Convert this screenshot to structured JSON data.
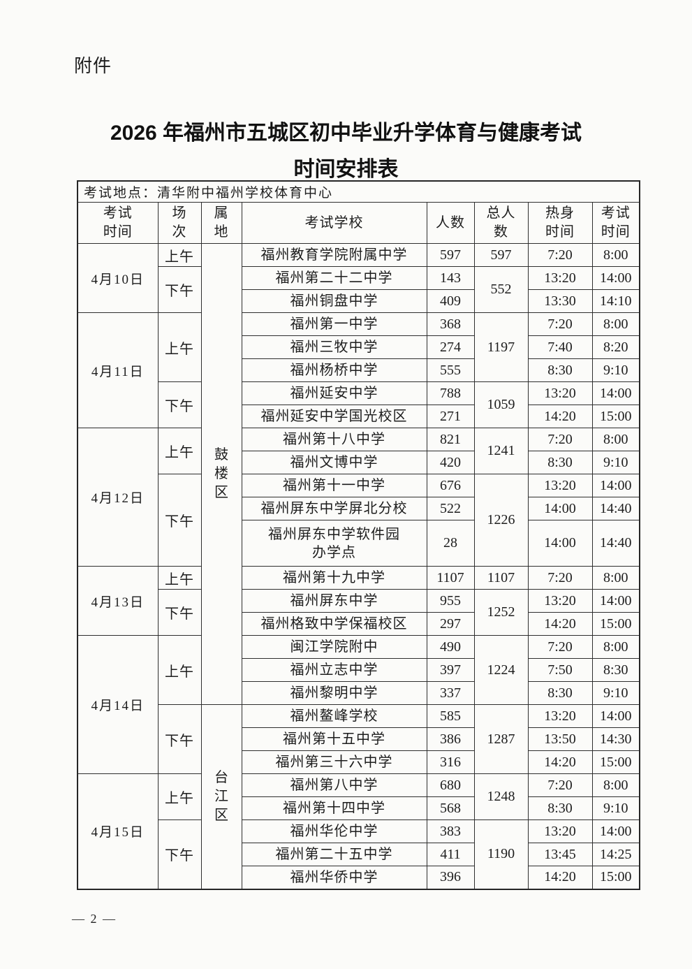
{
  "page": {
    "attachment_label": "附件",
    "title_line1": "2026 年福州市五城区初中毕业升学体育与健康考试",
    "title_line2": "时间安排表",
    "page_number": "— 2 —"
  },
  "table": {
    "location_label": "考试地点：清华附中福州学校体育中心",
    "header_names": [
      "exam-date",
      "session",
      "district",
      "school",
      "count",
      "total-count",
      "warmup-time",
      "exam-time"
    ],
    "headers": [
      "考试\n时间",
      "场\n次",
      "属\n地",
      "考试学校",
      "人数",
      "总人\n数",
      "热身\n时间",
      "考试\n时间"
    ],
    "rows": [
      {
        "date": {
          "label": "4月10日",
          "span": 3
        },
        "session": {
          "label": "上午",
          "span": 1
        },
        "district": {
          "label": "鼓楼区",
          "span": 19
        },
        "school": "福州教育学院附属中学",
        "count": "597",
        "total": {
          "value": "597",
          "span": 1
        },
        "warmup": "7:20",
        "exam_time": "8:00"
      },
      {
        "session": {
          "label": "下午",
          "span": 2
        },
        "school": "福州第二十二中学",
        "count": "143",
        "total": {
          "value": "552",
          "span": 2
        },
        "warmup": "13:20",
        "exam_time": "14:00"
      },
      {
        "school": "福州铜盘中学",
        "count": "409",
        "warmup": "13:30",
        "exam_time": "14:10"
      },
      {
        "date": {
          "label": "4月11日",
          "span": 5
        },
        "session": {
          "label": "上午",
          "span": 3
        },
        "school": "福州第一中学",
        "count": "368",
        "total": {
          "value": "1197",
          "span": 3
        },
        "warmup": "7:20",
        "exam_time": "8:00"
      },
      {
        "school": "福州三牧中学",
        "count": "274",
        "warmup": "7:40",
        "exam_time": "8:20"
      },
      {
        "school": "福州杨桥中学",
        "count": "555",
        "warmup": "8:30",
        "exam_time": "9:10"
      },
      {
        "session": {
          "label": "下午",
          "span": 2
        },
        "school": "福州延安中学",
        "count": "788",
        "total": {
          "value": "1059",
          "span": 2
        },
        "warmup": "13:20",
        "exam_time": "14:00"
      },
      {
        "school": "福州延安中学国光校区",
        "count": "271",
        "warmup": "14:20",
        "exam_time": "15:00"
      },
      {
        "date": {
          "label": "4月12日",
          "span": 5
        },
        "session": {
          "label": "上午",
          "span": 2
        },
        "school": "福州第十八中学",
        "count": "821",
        "total": {
          "value": "1241",
          "span": 2
        },
        "warmup": "7:20",
        "exam_time": "8:00"
      },
      {
        "school": "福州文博中学",
        "count": "420",
        "warmup": "8:30",
        "exam_time": "9:10"
      },
      {
        "session": {
          "label": "下午",
          "span": 3
        },
        "school": "福州第十一中学",
        "count": "676",
        "total": {
          "value": "1226",
          "span": 3
        },
        "warmup": "13:20",
        "exam_time": "14:00"
      },
      {
        "school": "福州屏东中学屏北分校",
        "count": "522",
        "warmup": "14:00",
        "exam_time": "14:40"
      },
      {
        "school": "福州屏东中学软件园办学点",
        "count": "28",
        "warmup": "14:00",
        "exam_time": "14:40",
        "tall": true
      },
      {
        "date": {
          "label": "4月13日",
          "span": 3
        },
        "session": {
          "label": "上午",
          "span": 1
        },
        "school": "福州第十九中学",
        "count": "1107",
        "total": {
          "value": "1107",
          "span": 1
        },
        "warmup": "7:20",
        "exam_time": "8:00"
      },
      {
        "session": {
          "label": "下午",
          "span": 2
        },
        "school": "福州屏东中学",
        "count": "955",
        "total": {
          "value": "1252",
          "span": 2
        },
        "warmup": "13:20",
        "exam_time": "14:00"
      },
      {
        "school": "福州格致中学保福校区",
        "count": "297",
        "warmup": "14:20",
        "exam_time": "15:00"
      },
      {
        "date": {
          "label": "4月14日",
          "span": 6
        },
        "session": {
          "label": "上午",
          "span": 3
        },
        "school": "闽江学院附中",
        "count": "490",
        "total": {
          "value": "1224",
          "span": 3
        },
        "warmup": "7:20",
        "exam_time": "8:00"
      },
      {
        "school": "福州立志中学",
        "count": "397",
        "warmup": "7:50",
        "exam_time": "8:30"
      },
      {
        "school": "福州黎明中学",
        "count": "337",
        "warmup": "8:30",
        "exam_time": "9:10"
      },
      {
        "session": {
          "label": "下午",
          "span": 3
        },
        "district": {
          "label": "台江区",
          "span": 8
        },
        "school": "福州鳌峰学校",
        "count": "585",
        "total": {
          "value": "1287",
          "span": 3
        },
        "warmup": "13:20",
        "exam_time": "14:00"
      },
      {
        "school": "福州第十五中学",
        "count": "386",
        "warmup": "13:50",
        "exam_time": "14:30"
      },
      {
        "school": "福州第三十六中学",
        "count": "316",
        "warmup": "14:20",
        "exam_time": "15:00"
      },
      {
        "date": {
          "label": "4月15日",
          "span": 5
        },
        "session": {
          "label": "上午",
          "span": 2
        },
        "school": "福州第八中学",
        "count": "680",
        "total": {
          "value": "1248",
          "span": 2
        },
        "warmup": "7:20",
        "exam_time": "8:00"
      },
      {
        "school": "福州第十四中学",
        "count": "568",
        "warmup": "8:30",
        "exam_time": "9:10"
      },
      {
        "session": {
          "label": "下午",
          "span": 3
        },
        "school": "福州华伦中学",
        "count": "383",
        "total": {
          "value": "1190",
          "span": 3
        },
        "warmup": "13:20",
        "exam_time": "14:00"
      },
      {
        "school": "福州第二十五中学",
        "count": "411",
        "warmup": "13:45",
        "exam_time": "14:25"
      },
      {
        "school": "福州华侨中学",
        "count": "396",
        "warmup": "14:20",
        "exam_time": "15:00"
      }
    ]
  }
}
